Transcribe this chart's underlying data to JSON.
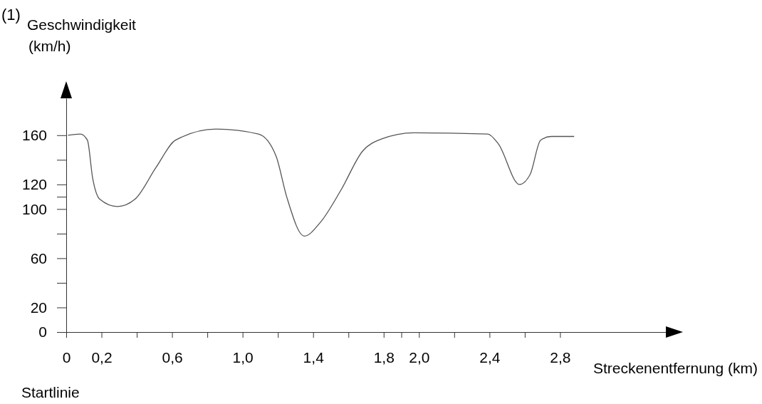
{
  "chart_data": {
    "type": "line",
    "title": "(1)",
    "ylabel": "Geschwindigkeit\n(km/h)",
    "xlabel": "Streckenentfernung (km)",
    "annotations": [
      "Startlinie"
    ],
    "xlim": [
      0,
      3.4
    ],
    "ylim": [
      0,
      190
    ],
    "xticks": [
      0,
      {
        "value": 0.2,
        "label": "0,2"
      },
      {
        "value": 0.4,
        "label": null
      },
      {
        "value": 0.6,
        "label": "0,6"
      },
      {
        "value": 0.8,
        "label": null
      },
      {
        "value": 1.0,
        "label": "1,0"
      },
      {
        "value": 1.2,
        "label": null
      },
      {
        "value": 1.4,
        "label": "1,4"
      },
      {
        "value": 1.6,
        "label": null
      },
      {
        "value": 1.8,
        "label": "1,8"
      },
      {
        "value": 1.9,
        "label": null
      },
      {
        "value": 2.0,
        "label": "2,0"
      },
      {
        "value": 2.2,
        "label": null
      },
      {
        "value": 2.4,
        "label": "2,4"
      },
      {
        "value": 2.6,
        "label": null
      },
      {
        "value": 2.8,
        "label": "2,8"
      }
    ],
    "yticks": [
      0,
      20,
      {
        "value": 40,
        "label": null
      },
      60,
      {
        "value": 80,
        "label": null
      },
      100,
      {
        "value": 110,
        "label": null
      },
      120,
      {
        "value": 140,
        "label": null
      },
      160
    ],
    "grid": false,
    "marker": "none",
    "line_style": "solid",
    "series": [
      {
        "color": "#555555",
        "x": [
          0.01,
          0.08,
          0.12,
          0.15,
          0.19,
          0.29,
          0.39,
          0.51,
          0.62,
          0.85,
          1.09,
          1.19,
          1.25,
          1.35,
          1.44,
          1.56,
          1.68,
          1.79,
          1.97,
          2.39,
          2.45,
          2.57,
          2.63,
          2.69,
          2.75,
          2.88
        ],
        "values": [
          160,
          161,
          156,
          125,
          108,
          102,
          108,
          134,
          156,
          165,
          161,
          143,
          110,
          78,
          89,
          116,
          147,
          157,
          162,
          161,
          153,
          120,
          128,
          156,
          159,
          159
        ]
      }
    ]
  }
}
